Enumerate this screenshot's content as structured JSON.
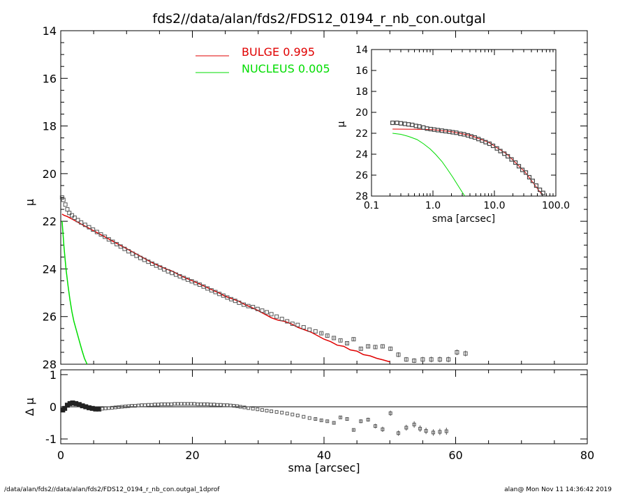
{
  "chart_data": {
    "type": "scatter",
    "title": "fds2//data/alan/fds2/FDS12_0194_r_nb_con.outgal",
    "footer_left": "/data/alan/fds2//data/alan/fds2/FDS12_0194_r_nb_con.outgal_1dprof",
    "footer_right": "alan@  Mon Nov 11 14:36:42 2019",
    "colors": {
      "bulge": "#e00000",
      "nucleus": "#00dd00",
      "data": "#555555",
      "axis": "#000000"
    },
    "legend": [
      {
        "label": "BULGE  0.995",
        "color": "#e00000"
      },
      {
        "label": "NUCLEUS  0.005",
        "color": "#00dd00"
      }
    ],
    "main": {
      "xlabel": "sma [arcsec]",
      "ylabel": "μ",
      "xlim": [
        0,
        80
      ],
      "ylim": [
        28,
        14
      ],
      "xticks": [
        "0",
        "20",
        "40",
        "60",
        "80"
      ],
      "yticks": [
        "14",
        "16",
        "18",
        "20",
        "22",
        "24",
        "26",
        "28"
      ],
      "observed": {
        "x": [
          0.2,
          0.4,
          0.7,
          1.0,
          1.3,
          1.7,
          2.1,
          2.6,
          3.1,
          3.7,
          4.3,
          4.9,
          5.5,
          6.1,
          6.7,
          7.3,
          7.9,
          8.5,
          9.1,
          9.7,
          10.3,
          10.9,
          11.5,
          12.1,
          12.7,
          13.3,
          13.9,
          14.5,
          15.1,
          15.7,
          16.3,
          16.9,
          17.5,
          18.1,
          18.7,
          19.3,
          19.9,
          20.5,
          21.1,
          21.7,
          22.3,
          22.9,
          23.5,
          24.1,
          24.7,
          25.3,
          25.9,
          26.5,
          27.1,
          27.8,
          28.5,
          29.2,
          29.9,
          30.6,
          31.3,
          32.0,
          32.8,
          33.6,
          34.4,
          35.2,
          36.0,
          36.9,
          37.8,
          38.7,
          39.6,
          40.5,
          41.5,
          42.5,
          43.5,
          44.5,
          45.6,
          46.7,
          47.8,
          48.9,
          50.1,
          51.3,
          52.5,
          53.7,
          55.0,
          56.3,
          57.6,
          58.9,
          60.2,
          61.5
        ],
        "y": [
          21.0,
          21.1,
          21.3,
          21.5,
          21.65,
          21.75,
          21.85,
          21.95,
          22.05,
          22.15,
          22.25,
          22.35,
          22.45,
          22.55,
          22.65,
          22.76,
          22.86,
          22.96,
          23.06,
          23.16,
          23.26,
          23.36,
          23.45,
          23.54,
          23.62,
          23.7,
          23.78,
          23.86,
          23.94,
          24.02,
          24.1,
          24.17,
          24.24,
          24.31,
          24.38,
          24.45,
          24.52,
          24.59,
          24.66,
          24.74,
          24.82,
          24.9,
          24.97,
          25.05,
          25.12,
          25.2,
          25.27,
          25.34,
          25.42,
          25.5,
          25.56,
          25.6,
          25.68,
          25.75,
          25.82,
          25.9,
          26.0,
          26.1,
          26.2,
          26.3,
          26.35,
          26.45,
          26.55,
          26.62,
          26.7,
          26.8,
          26.9,
          27.0,
          27.12,
          26.95,
          27.35,
          27.25,
          27.28,
          27.25,
          27.35,
          27.6,
          27.8,
          27.85,
          27.8,
          27.8,
          27.8,
          27.8,
          27.5,
          27.55
        ],
        "error": [
          0,
          0,
          0,
          0,
          0,
          0,
          0,
          0,
          0,
          0,
          0,
          0,
          0,
          0,
          0,
          0,
          0,
          0,
          0,
          0,
          0,
          0,
          0,
          0,
          0,
          0,
          0,
          0,
          0,
          0,
          0,
          0,
          0,
          0,
          0,
          0,
          0,
          0,
          0,
          0,
          0,
          0,
          0,
          0,
          0,
          0,
          0,
          0,
          0,
          0,
          0,
          0,
          0,
          0,
          0,
          0,
          0,
          0,
          0,
          0,
          0,
          0,
          0,
          0,
          0.05,
          0.05,
          0.05,
          0.05,
          0.06,
          0.06,
          0.06,
          0.07,
          0.08,
          0.08,
          0.09,
          0.1,
          0.1,
          0.1,
          0.11,
          0.12,
          0.12,
          0.12,
          0.12,
          0.12
        ]
      },
      "bulge": {
        "x": [
          0.2,
          0.5,
          1,
          2,
          3,
          4,
          5,
          6,
          7,
          8,
          9,
          10,
          11,
          12,
          13,
          14,
          15,
          16,
          17,
          18,
          19,
          20,
          21,
          22,
          23,
          24,
          25,
          26,
          27,
          28,
          29,
          30,
          31,
          32,
          33,
          34,
          35,
          36,
          37,
          38,
          39,
          40,
          41,
          42,
          43,
          44,
          45,
          46,
          47,
          48,
          49,
          50
        ],
        "y": [
          21.7,
          21.75,
          21.8,
          21.95,
          22.1,
          22.25,
          22.4,
          22.55,
          22.7,
          22.85,
          23.0,
          23.15,
          23.3,
          23.45,
          23.6,
          23.75,
          23.88,
          24.0,
          24.1,
          24.25,
          24.38,
          24.5,
          24.62,
          24.75,
          24.88,
          25.0,
          25.15,
          25.25,
          25.35,
          25.5,
          25.62,
          25.75,
          25.9,
          26.05,
          26.15,
          26.2,
          26.3,
          26.45,
          26.55,
          26.65,
          26.8,
          26.95,
          27.05,
          27.2,
          27.25,
          27.4,
          27.45,
          27.6,
          27.65,
          27.75,
          27.82,
          27.9
        ]
      },
      "nucleus": {
        "x": [
          0.2,
          0.5,
          0.8,
          1.1,
          1.4,
          1.7,
          2.0,
          2.4,
          2.8,
          3.2,
          3.6,
          4.0
        ],
        "y": [
          22.0,
          23.1,
          24.0,
          24.7,
          25.3,
          25.8,
          26.2,
          26.6,
          27.0,
          27.4,
          27.75,
          28.1
        ]
      }
    },
    "residual": {
      "ylabel": "Δ μ",
      "xlim": [
        0,
        80
      ],
      "ylim": [
        -1.15,
        1.15
      ],
      "yticks": [
        "1",
        "0",
        "-1"
      ],
      "x": [
        0.3,
        0.6,
        1,
        1.4,
        1.8,
        2.3,
        2.8,
        3.3,
        3.8,
        4.3,
        4.8,
        5.3,
        5.8,
        6.3,
        6.8,
        7.3,
        7.8,
        8.3,
        8.8,
        9.3,
        9.8,
        10.3,
        10.8,
        11.3,
        11.8,
        12.3,
        12.8,
        13.3,
        13.8,
        14.3,
        14.8,
        15.3,
        15.8,
        16.3,
        16.8,
        17.3,
        17.8,
        18.3,
        18.8,
        19.3,
        19.8,
        20.3,
        20.8,
        21.3,
        21.8,
        22.3,
        22.8,
        23.3,
        23.8,
        24.3,
        24.8,
        25.3,
        25.8,
        26.3,
        26.8,
        27.3,
        27.9,
        28.5,
        29.2,
        29.9,
        30.6,
        31.3,
        32.0,
        32.8,
        33.6,
        34.4,
        35.2,
        36.0,
        36.9,
        37.8,
        38.7,
        39.6,
        40.5,
        41.5,
        42.5,
        43.5,
        44.5,
        45.6,
        46.7,
        47.8,
        48.9,
        50.1,
        51.3,
        52.5,
        53.7,
        54.6,
        55.5,
        56.6,
        57.6,
        58.6
      ],
      "y": [
        -0.1,
        -0.05,
        0.05,
        0.1,
        0.12,
        0.1,
        0.07,
        0.03,
        0,
        -0.03,
        -0.05,
        -0.07,
        -0.07,
        -0.06,
        -0.05,
        -0.04,
        -0.03,
        -0.02,
        -0.01,
        0,
        0.01,
        0.02,
        0.03,
        0.03,
        0.04,
        0.05,
        0.05,
        0.06,
        0.06,
        0.07,
        0.07,
        0.08,
        0.08,
        0.08,
        0.08,
        0.09,
        0.09,
        0.09,
        0.09,
        0.09,
        0.09,
        0.09,
        0.08,
        0.08,
        0.08,
        0.08,
        0.07,
        0.07,
        0.06,
        0.06,
        0.05,
        0.05,
        0.04,
        0.03,
        0.02,
        0,
        -0.02,
        -0.04,
        -0.06,
        -0.08,
        -0.1,
        -0.12,
        -0.14,
        -0.16,
        -0.18,
        -0.21,
        -0.24,
        -0.27,
        -0.31,
        -0.35,
        -0.38,
        -0.42,
        -0.45,
        -0.5,
        -0.33,
        -0.38,
        -0.72,
        -0.45,
        -0.4,
        -0.6,
        -0.7,
        -0.2,
        -0.82,
        -0.65,
        -0.55,
        -0.68,
        -0.75,
        -0.8,
        -0.78,
        -0.76
      ],
      "error": [
        0,
        0,
        0,
        0,
        0,
        0,
        0,
        0,
        0,
        0,
        0,
        0,
        0,
        0,
        0,
        0,
        0,
        0,
        0,
        0,
        0,
        0,
        0,
        0,
        0,
        0,
        0,
        0,
        0,
        0,
        0,
        0,
        0,
        0,
        0,
        0,
        0,
        0,
        0,
        0,
        0,
        0,
        0,
        0,
        0,
        0,
        0,
        0,
        0,
        0,
        0,
        0,
        0,
        0,
        0,
        0,
        0,
        0,
        0,
        0,
        0,
        0,
        0,
        0,
        0,
        0,
        0,
        0,
        0,
        0,
        0.03,
        0.03,
        0.03,
        0.04,
        0.04,
        0.04,
        0.05,
        0.06,
        0.06,
        0.07,
        0.08,
        0.08,
        0.08,
        0.09,
        0.1,
        0.1,
        0.1,
        0.1,
        0.1,
        0.11
      ]
    },
    "inset": {
      "xlabel": "sma [arcsec]",
      "ylabel": "μ",
      "xscale": "log",
      "xlim": [
        0.1,
        100.0
      ],
      "ylim": [
        28,
        14
      ],
      "xticks": [
        "0.1",
        "1.0",
        "10.0",
        "100.0"
      ],
      "yticks": [
        "14",
        "16",
        "18",
        "20",
        "22",
        "24",
        "26",
        "28"
      ],
      "observed": {
        "x": [
          0.22,
          0.26,
          0.3,
          0.35,
          0.4,
          0.46,
          0.53,
          0.6,
          0.7,
          0.8,
          0.92,
          1.05,
          1.2,
          1.4,
          1.6,
          1.85,
          2.1,
          2.4,
          2.8,
          3.2,
          3.7,
          4.2,
          4.8,
          5.5,
          6.3,
          7.2,
          8.3,
          9.5,
          11,
          12.5,
          14.5,
          16.5,
          19,
          22,
          25,
          28.5,
          32.5,
          37,
          42,
          48,
          55,
          62
        ],
        "y": [
          21.0,
          21.0,
          21.05,
          21.1,
          21.15,
          21.2,
          21.3,
          21.35,
          21.45,
          21.55,
          21.6,
          21.65,
          21.7,
          21.75,
          21.8,
          21.85,
          21.9,
          21.95,
          22.05,
          22.1,
          22.2,
          22.3,
          22.4,
          22.55,
          22.7,
          22.85,
          23.0,
          23.2,
          23.45,
          23.7,
          23.95,
          24.2,
          24.5,
          24.8,
          25.15,
          25.5,
          25.75,
          26.2,
          26.55,
          27.0,
          27.4,
          27.7
        ]
      },
      "bulge": {
        "x": [
          0.22,
          0.5,
          1.0,
          2,
          4,
          8,
          16,
          32,
          60
        ],
        "y": [
          21.6,
          21.62,
          21.65,
          21.85,
          22.2,
          22.85,
          24.0,
          25.75,
          27.9
        ]
      },
      "nucleus": {
        "x": [
          0.22,
          0.3,
          0.4,
          0.55,
          0.7,
          0.9,
          1.1,
          1.4,
          1.7,
          2.1,
          2.5,
          2.9,
          3.3
        ],
        "y": [
          22.0,
          22.1,
          22.3,
          22.6,
          23.0,
          23.5,
          24.0,
          24.7,
          25.4,
          26.2,
          26.9,
          27.5,
          28.0
        ]
      }
    }
  }
}
